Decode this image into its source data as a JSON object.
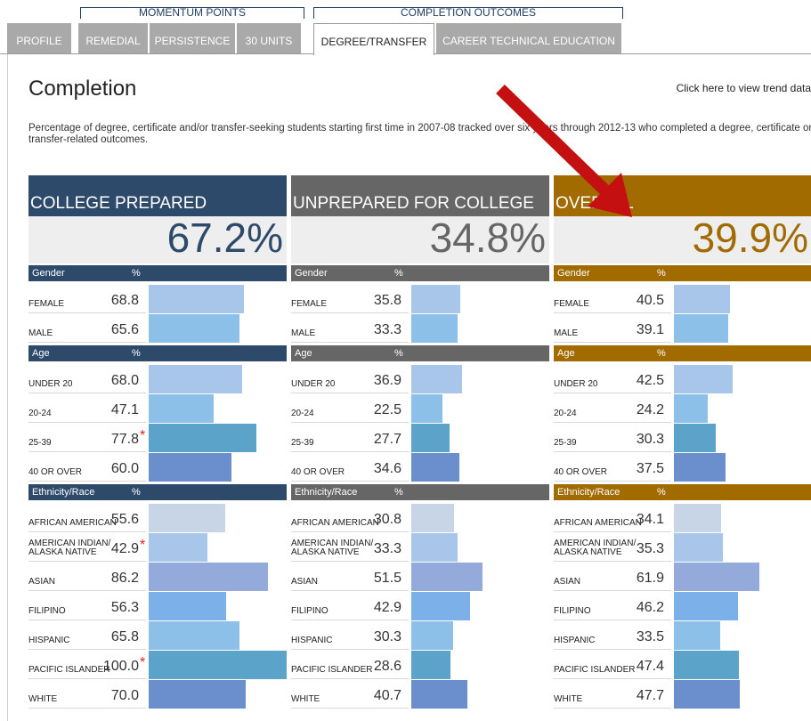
{
  "tab_groups": [
    "MOMENTUM POINTS",
    "COMPLETION OUTCOMES"
  ],
  "tabs": [
    {
      "label": "PROFILE"
    },
    {
      "label": "REMEDIAL"
    },
    {
      "label": "PERSISTENCE"
    },
    {
      "label": "30 UNITS"
    },
    {
      "label": "DEGREE/TRANSFER",
      "active": true
    },
    {
      "label": "CAREER TECHNICAL EDUCATION"
    }
  ],
  "title": "Completion",
  "trend_link": "Click here to view trend data",
  "description": "Percentage of degree, certificate and/or transfer-seeking students starting first time in 2007-08 tracked over six years through 2012-13 who completed a degree, certificate or transfer-related outcomes.",
  "panels": [
    {
      "title": "COLLEGE PREPARED",
      "total": "67.2%",
      "color": "#2e4a6b",
      "sections": [
        {
          "header": "Gender",
          "unit": "%",
          "rows": [
            {
              "label": "FEMALE",
              "value": 68.8,
              "color": "#a8c6ea"
            },
            {
              "label": "MALE",
              "value": 65.6,
              "color": "#8cc0e8"
            }
          ]
        },
        {
          "header": "Age",
          "unit": "%",
          "rows": [
            {
              "label": "UNDER 20",
              "value": 68.0,
              "value_label": "68.0",
              "color": "#a8c6ea"
            },
            {
              "label": "20-24",
              "value": 47.1,
              "color": "#8cc0e8"
            },
            {
              "label": "25-39",
              "value": 77.8,
              "flag": "*",
              "color": "#5ba3c8"
            },
            {
              "label": "40 OR OVER",
              "value": 60.0,
              "value_label": "60.0",
              "color": "#6a8fcc"
            }
          ]
        },
        {
          "header": "Ethnicity/Race",
          "unit": "%",
          "rows": [
            {
              "label": "AFRICAN AMERICAN",
              "value": 55.6,
              "color": "#c8d5e7"
            },
            {
              "label": "AMERICAN INDIAN/\nALASKA NATIVE",
              "value": 42.9,
              "flag": "*",
              "color": "#a8c6ea"
            },
            {
              "label": "ASIAN",
              "value": 86.2,
              "color": "#94aadb"
            },
            {
              "label": "FILIPINO",
              "value": 56.3,
              "color": "#7bb1e8"
            },
            {
              "label": "HISPANIC",
              "value": 65.8,
              "color": "#8cc0e8"
            },
            {
              "label": "PACIFIC ISLANDER",
              "value": 100.0,
              "value_label": "100.0",
              "flag": "*",
              "color": "#5ba3c8"
            },
            {
              "label": "WHITE",
              "value": 70.0,
              "value_label": "70.0",
              "color": "#6a8fcc"
            }
          ]
        }
      ]
    },
    {
      "title": "UNPREPARED FOR COLLEGE",
      "total": "34.8%",
      "color": "#666666",
      "sections": [
        {
          "header": "Gender",
          "unit": "%",
          "rows": [
            {
              "label": "FEMALE",
              "value": 35.8,
              "color": "#a8c6ea"
            },
            {
              "label": "MALE",
              "value": 33.3,
              "color": "#8cc0e8"
            }
          ]
        },
        {
          "header": "Age",
          "unit": "%",
          "rows": [
            {
              "label": "UNDER 20",
              "value": 36.9,
              "color": "#a8c6ea"
            },
            {
              "label": "20-24",
              "value": 22.5,
              "color": "#8cc0e8"
            },
            {
              "label": "25-39",
              "value": 27.7,
              "color": "#5ba3c8"
            },
            {
              "label": "40 OR OVER",
              "value": 34.6,
              "color": "#6a8fcc"
            }
          ]
        },
        {
          "header": "Ethnicity/Race",
          "unit": "%",
          "rows": [
            {
              "label": "AFRICAN AMERICAN",
              "value": 30.8,
              "color": "#c8d5e7"
            },
            {
              "label": "AMERICAN INDIAN/\nALASKA NATIVE",
              "value": 33.3,
              "color": "#a8c6ea"
            },
            {
              "label": "ASIAN",
              "value": 51.5,
              "color": "#94aadb"
            },
            {
              "label": "FILIPINO",
              "value": 42.9,
              "color": "#7bb1e8"
            },
            {
              "label": "HISPANIC",
              "value": 30.3,
              "color": "#8cc0e8"
            },
            {
              "label": "PACIFIC ISLANDER",
              "value": 28.6,
              "color": "#5ba3c8"
            },
            {
              "label": "WHITE",
              "value": 40.7,
              "color": "#6a8fcc"
            }
          ]
        }
      ]
    },
    {
      "title": "OVERALL",
      "total": "39.9%",
      "color": "#a16b00",
      "sections": [
        {
          "header": "Gender",
          "unit": "%",
          "rows": [
            {
              "label": "FEMALE",
              "value": 40.5,
              "color": "#a8c6ea"
            },
            {
              "label": "MALE",
              "value": 39.1,
              "color": "#8cc0e8"
            }
          ]
        },
        {
          "header": "Age",
          "unit": "%",
          "rows": [
            {
              "label": "UNDER 20",
              "value": 42.5,
              "color": "#a8c6ea"
            },
            {
              "label": "20-24",
              "value": 24.2,
              "color": "#8cc0e8"
            },
            {
              "label": "25-39",
              "value": 30.3,
              "color": "#5ba3c8"
            },
            {
              "label": "40 OR OVER",
              "value": 37.5,
              "color": "#6a8fcc"
            }
          ]
        },
        {
          "header": "Ethnicity/Race",
          "unit": "%",
          "rows": [
            {
              "label": "AFRICAN AMERICAN",
              "value": 34.1,
              "color": "#c8d5e7"
            },
            {
              "label": "AMERICAN INDIAN/\nALASKA NATIVE",
              "value": 35.3,
              "color": "#a8c6ea"
            },
            {
              "label": "ASIAN",
              "value": 61.9,
              "color": "#94aadb"
            },
            {
              "label": "FILIPINO",
              "value": 46.2,
              "color": "#7bb1e8"
            },
            {
              "label": "HISPANIC",
              "value": 33.5,
              "color": "#8cc0e8"
            },
            {
              "label": "PACIFIC ISLANDER",
              "value": 47.4,
              "color": "#5ba3c8"
            },
            {
              "label": "WHITE",
              "value": 47.7,
              "color": "#6a8fcc"
            }
          ]
        }
      ]
    }
  ]
}
